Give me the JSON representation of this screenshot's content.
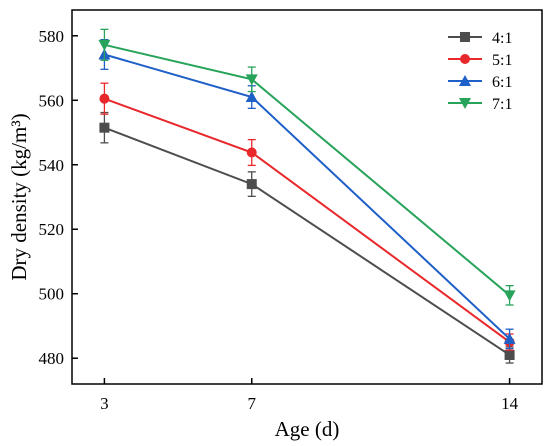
{
  "chart_data": {
    "type": "line",
    "xlabel": "Age (d)",
    "ylabel": "Dry density (kg/m³)",
    "x": [
      3,
      7,
      14
    ],
    "x_tick_labels": [
      "3",
      "7",
      "14"
    ],
    "ylim": [
      472,
      588
    ],
    "y_ticks": [
      480,
      500,
      520,
      540,
      560,
      580
    ],
    "grid": false,
    "legend_position": "top-right",
    "error_bars": true,
    "series": [
      {
        "name": "4:1",
        "color": "#4d4d4d",
        "marker": "square",
        "values": [
          551.5,
          534.0,
          481.0
        ],
        "errors": [
          4.7,
          3.8,
          2.5
        ]
      },
      {
        "name": "5:1",
        "color": "#e8282b",
        "marker": "circle",
        "values": [
          560.5,
          543.8,
          485.0
        ],
        "errors": [
          4.8,
          4.0,
          2.5
        ]
      },
      {
        "name": "6:1",
        "color": "#1f5fc8",
        "marker": "triangle-up",
        "values": [
          574.2,
          561.0,
          486.0
        ],
        "errors": [
          4.6,
          3.5,
          3.0
        ]
      },
      {
        "name": "7:1",
        "color": "#27a35a",
        "marker": "triangle-down",
        "values": [
          577.2,
          566.5,
          499.5
        ],
        "errors": [
          4.8,
          3.8,
          3.0
        ]
      }
    ]
  }
}
